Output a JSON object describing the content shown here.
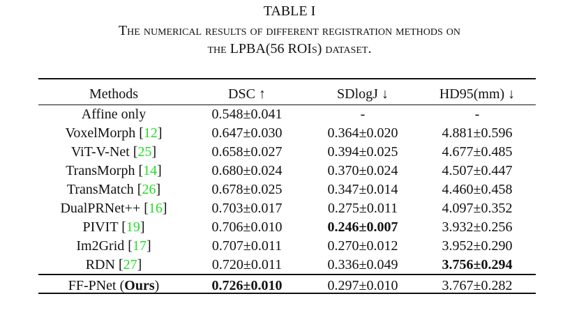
{
  "table": {
    "title": "TABLE I",
    "caption_lines": [
      "The numerical results of different registration methods on",
      "the LPBA(56 ROIs) dataset."
    ],
    "header": [
      "Methods",
      "DSC ↑",
      "SDlogJ ↓",
      "HD95(mm) ↓"
    ],
    "rows": [
      {
        "method": "Affine only",
        "cells": [
          "0.548±0.041",
          "-",
          "-"
        ],
        "bold": []
      },
      {
        "method": "VoxelMorph",
        "ref": "[12]",
        "cells": [
          "0.647±0.030",
          "0.364±0.020",
          "4.881±0.596"
        ],
        "bold": []
      },
      {
        "method": "ViT-V-Net",
        "ref": "[25]",
        "cells": [
          "0.658±0.027",
          "0.394±0.025",
          "4.677±0.485"
        ],
        "bold": []
      },
      {
        "method": "TransMorph",
        "ref": "[14]",
        "cells": [
          "0.680±0.024",
          "0.370±0.024",
          "4.507±0.447"
        ],
        "bold": []
      },
      {
        "method": "TransMatch",
        "ref": "[26]",
        "cells": [
          "0.678±0.025",
          "0.347±0.014",
          "4.460±0.458"
        ],
        "bold": []
      },
      {
        "method": "DualPRNet++",
        "ref": "[16]",
        "cells": [
          "0.703±0.017",
          "0.275±0.011",
          "4.097±0.352"
        ],
        "bold": []
      },
      {
        "method": "PIVIT",
        "ref": "[19]",
        "cells": [
          "0.706±0.010",
          "0.246±0.007",
          "3.932±0.256"
        ],
        "bold": [
          1
        ]
      },
      {
        "method": "Im2Grid",
        "ref": "[17]",
        "cells": [
          "0.707±0.011",
          "0.270±0.012",
          "3.952±0.290"
        ],
        "bold": []
      },
      {
        "method": "RDN",
        "ref": "[27]",
        "cells": [
          "0.720±0.011",
          "0.336±0.049",
          "3.756±0.294"
        ],
        "bold": [
          2
        ]
      },
      {
        "method": "FF-PNet",
        "note": "(Ours)",
        "cells": [
          "0.726±0.010",
          "0.297±0.010",
          "3.767±0.282"
        ],
        "bold": [
          0
        ]
      }
    ],
    "ref_color": "#22dd22"
  }
}
